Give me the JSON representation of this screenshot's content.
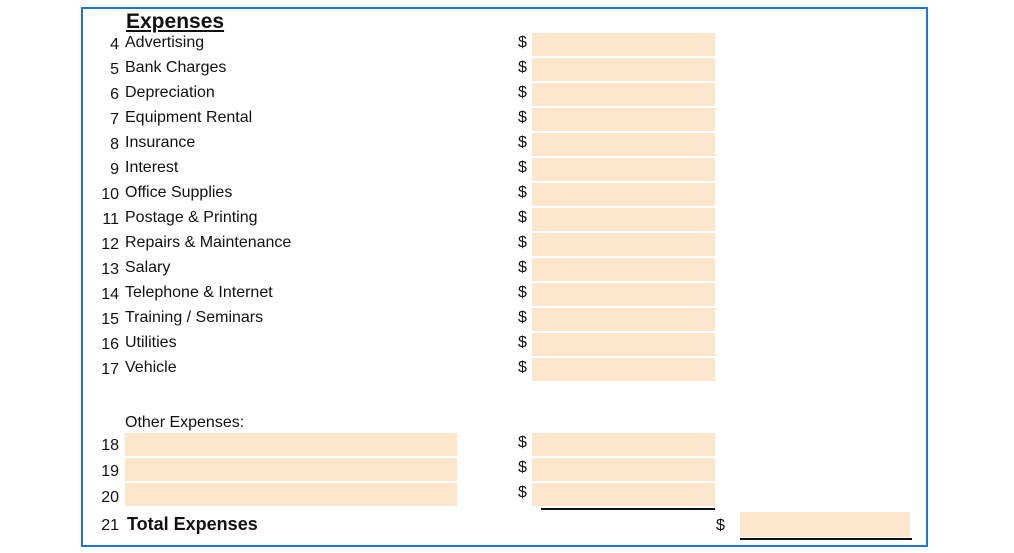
{
  "section_title": "Expenses",
  "currency_symbol": "$",
  "rows": [
    {
      "num": "4",
      "label": "Advertising"
    },
    {
      "num": "5",
      "label": "Bank Charges"
    },
    {
      "num": "6",
      "label": "Depreciation"
    },
    {
      "num": "7",
      "label": "Equipment Rental"
    },
    {
      "num": "8",
      "label": "Insurance"
    },
    {
      "num": "9",
      "label": "Interest"
    },
    {
      "num": "10",
      "label": "Office Supplies"
    },
    {
      "num": "11",
      "label": "Postage & Printing"
    },
    {
      "num": "12",
      "label": "Repairs & Maintenance"
    },
    {
      "num": "13",
      "label": "Salary"
    },
    {
      "num": "14",
      "label": "Telephone & Internet"
    },
    {
      "num": "15",
      "label": "Training / Seminars"
    },
    {
      "num": "16",
      "label": "Utilities"
    },
    {
      "num": "17",
      "label": "Vehicle"
    }
  ],
  "other_heading": "Other Expenses:",
  "other_rows": [
    {
      "num": "18"
    },
    {
      "num": "19"
    },
    {
      "num": "20"
    }
  ],
  "total": {
    "num": "21",
    "label": "Total Expenses"
  },
  "colors": {
    "border": "#1f75d6",
    "field_fill": "#fde6cc"
  }
}
